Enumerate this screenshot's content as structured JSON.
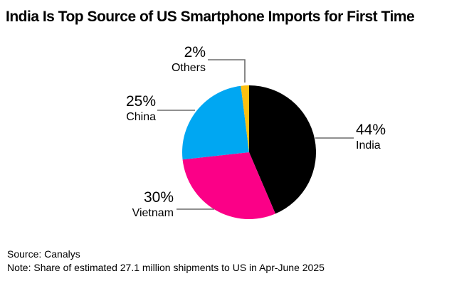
{
  "chart_data": {
    "type": "pie",
    "title": "India Is Top Source of US Smartphone Imports for First Time",
    "start_angle_deg": 0,
    "direction": "clockwise",
    "legend_position": "callout-labels",
    "slices": [
      {
        "label": "India",
        "pct_label": "44%",
        "value": 44,
        "color": "#000000"
      },
      {
        "label": "Vietnam",
        "pct_label": "30%",
        "value": 30,
        "color": "#fb0087"
      },
      {
        "label": "China",
        "pct_label": "25%",
        "value": 25,
        "color": "#00a7f2"
      },
      {
        "label": "Others",
        "pct_label": "2%",
        "value": 2,
        "color": "#fdc011"
      }
    ],
    "source": "Source: Canalys",
    "note": "Note: Share of estimated 27.1 million shipments to US in Apr-June 2025"
  },
  "footer": {
    "source": "Source: Canalys",
    "note": "Note: Share of estimated 27.1 million shipments to US in Apr-June 2025"
  }
}
